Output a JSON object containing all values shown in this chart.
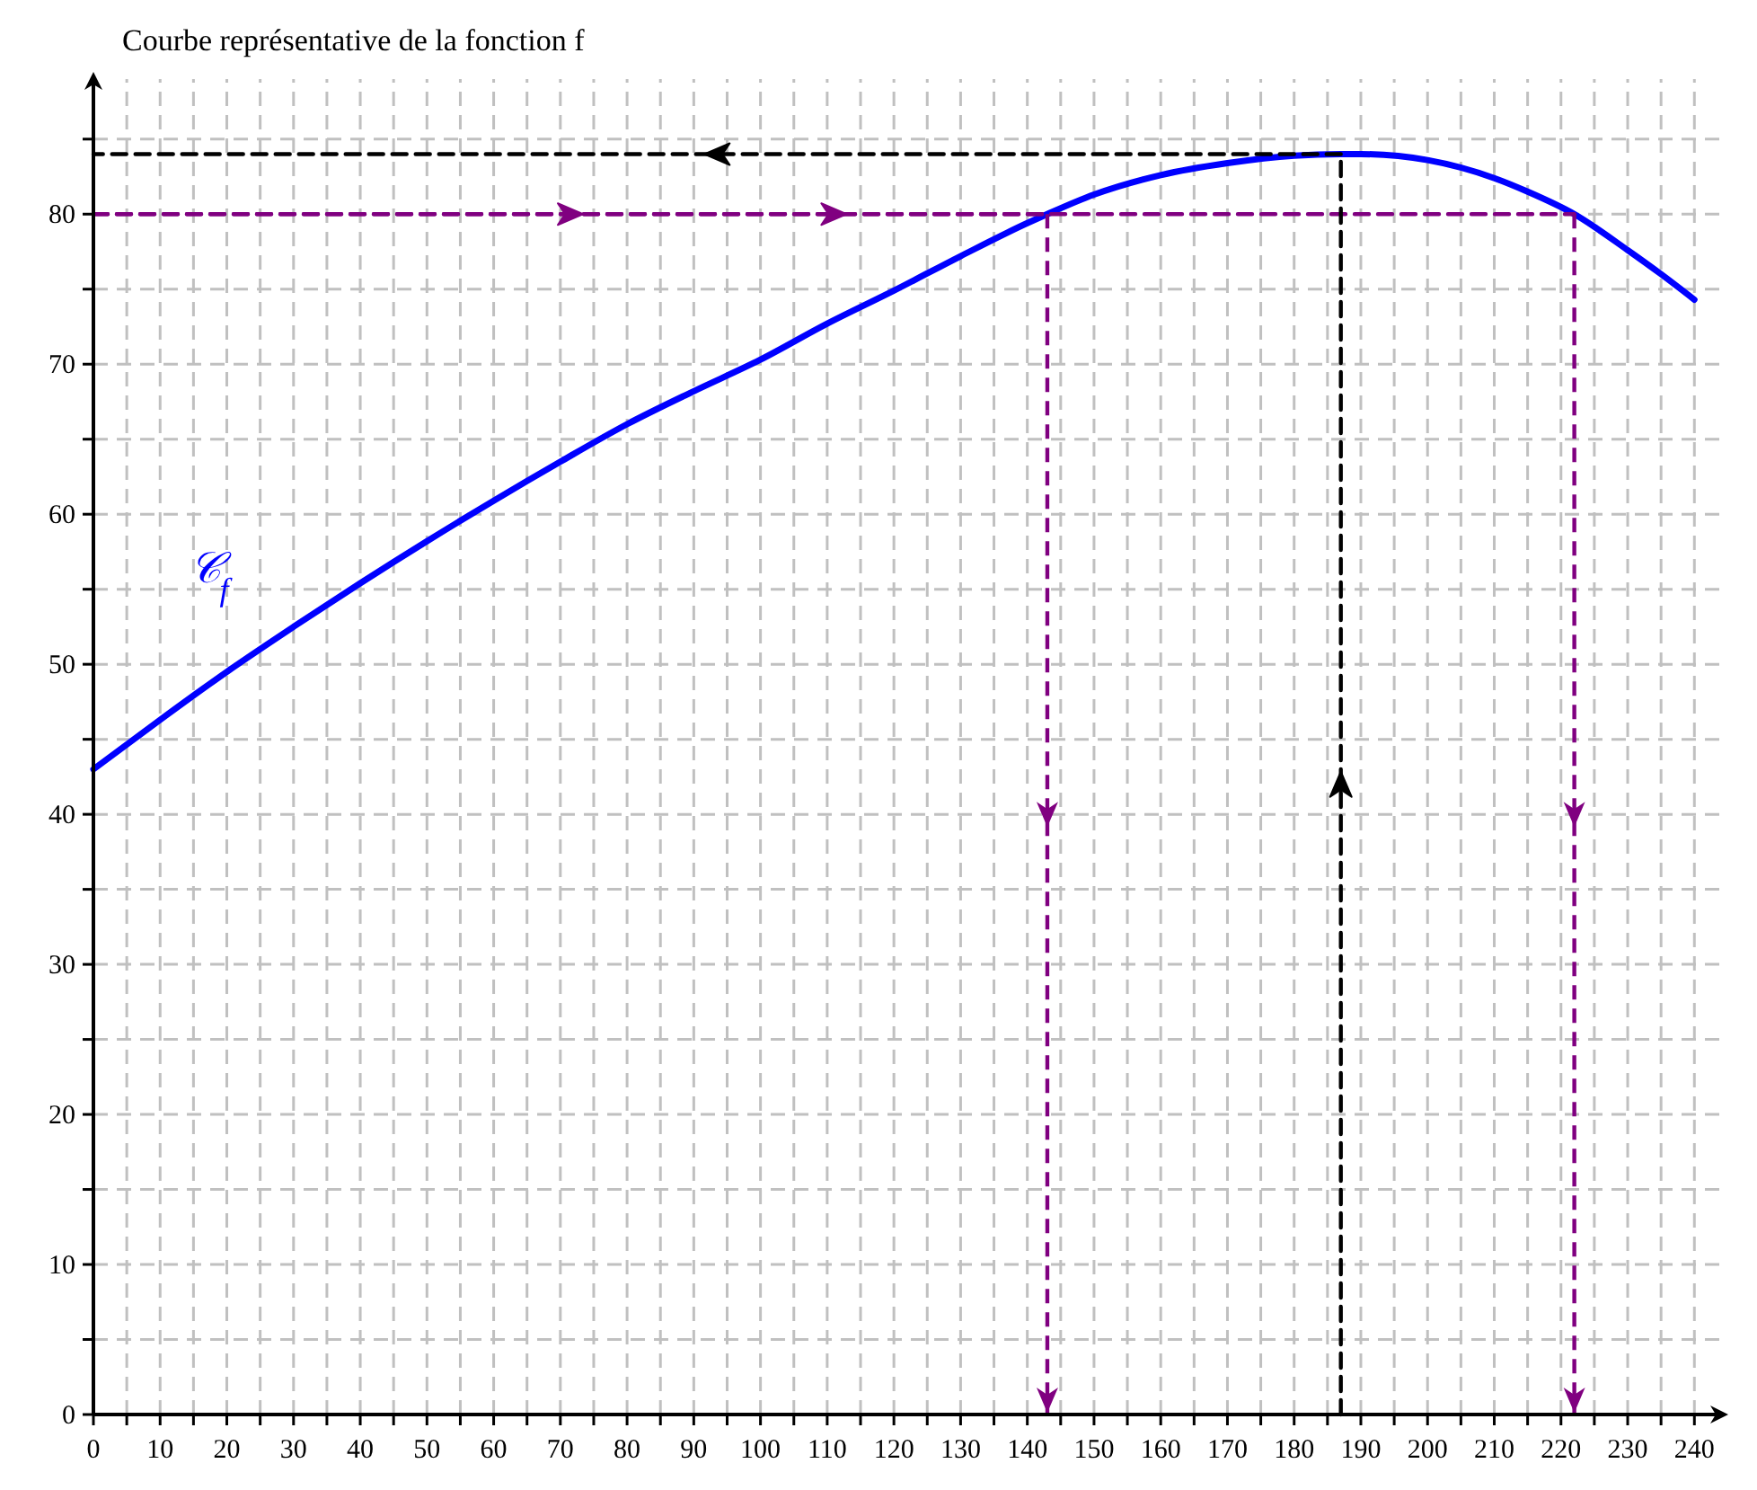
{
  "chart_data": {
    "type": "line",
    "title": "Courbe représentative de la fonction f",
    "xlim": [
      0,
      244
    ],
    "ylim": [
      0,
      89
    ],
    "xticks": [
      0,
      {
        "value": 5,
        "label": null
      },
      10,
      {
        "value": 15,
        "label": null
      },
      20,
      {
        "value": 25,
        "label": null
      },
      30,
      {
        "value": 35,
        "label": null
      },
      40,
      {
        "value": 45,
        "label": null
      },
      50,
      {
        "value": 55,
        "label": null
      },
      60,
      {
        "value": 65,
        "label": null
      },
      70,
      {
        "value": 75,
        "label": null
      },
      80,
      {
        "value": 85,
        "label": null
      },
      90,
      {
        "value": 95,
        "label": null
      },
      100,
      {
        "value": 105,
        "label": null
      },
      110,
      {
        "value": 115,
        "label": null
      },
      120,
      {
        "value": 125,
        "label": null
      },
      130,
      {
        "value": 135,
        "label": null
      },
      140,
      {
        "value": 145,
        "label": null
      },
      150,
      {
        "value": 155,
        "label": null
      },
      160,
      {
        "value": 165,
        "label": null
      },
      170,
      {
        "value": 175,
        "label": null
      },
      180,
      {
        "value": 185,
        "label": null
      },
      190,
      {
        "value": 195,
        "label": null
      },
      200,
      {
        "value": 205,
        "label": null
      },
      210,
      {
        "value": 215,
        "label": null
      },
      220,
      {
        "value": 225,
        "label": null
      },
      230,
      {
        "value": 235,
        "label": null
      },
      240
    ],
    "yticks": [
      0,
      {
        "value": 5,
        "label": null
      },
      10,
      {
        "value": 15,
        "label": null
      },
      20,
      {
        "value": 25,
        "label": null
      },
      30,
      {
        "value": 35,
        "label": null
      },
      40,
      {
        "value": 45,
        "label": null
      },
      50,
      {
        "value": 55,
        "label": null
      },
      60,
      {
        "value": 65,
        "label": null
      },
      70,
      {
        "value": 75,
        "label": null
      },
      80,
      {
        "value": 85,
        "label": null
      }
    ],
    "grid": true,
    "marker": "none",
    "series": [
      {
        "name": "𝒞$_{f}$",
        "color": "#0000ff",
        "line_style": "solid",
        "x": [
          0,
          10,
          20,
          30,
          40,
          50,
          60,
          70,
          80,
          90,
          100,
          110,
          120,
          130,
          140,
          143,
          150,
          160,
          170,
          180,
          187,
          190,
          200,
          210,
          215,
          222,
          230,
          235,
          240
        ],
        "values": [
          43,
          46.3,
          49.5,
          52.5,
          55.4,
          58.2,
          60.9,
          63.5,
          66,
          68.2,
          70.3,
          72.7,
          74.9,
          77.2,
          79.4,
          80,
          81.3,
          82.6,
          83.4,
          83.9,
          84,
          84,
          83.6,
          82.4,
          81.5,
          80,
          77.6,
          76,
          74.3
        ]
      },
      {
        "color": "#800080",
        "line_style": "dashed",
        "x": [
          0,
          143
        ],
        "values": [
          80,
          80
        ]
      },
      {
        "color": "#800080",
        "line_style": "dashed",
        "x": [
          0,
          222
        ],
        "values": [
          80,
          80
        ]
      },
      {
        "color": "#000000",
        "line_style": "dashed",
        "x": [
          187,
          0
        ],
        "values": [
          84,
          84
        ]
      },
      {
        "color": "#000000",
        "line_style": "dashed",
        "x": [
          187,
          187
        ],
        "values": [
          0,
          84
        ]
      }
    ],
    "ref_lines": [
      {
        "axis": "x",
        "value": 143,
        "color": "#800080",
        "line_style": "dashed"
      },
      {
        "axis": "x",
        "value": 222,
        "color": "#800080",
        "line_style": "dashed"
      }
    ]
  }
}
